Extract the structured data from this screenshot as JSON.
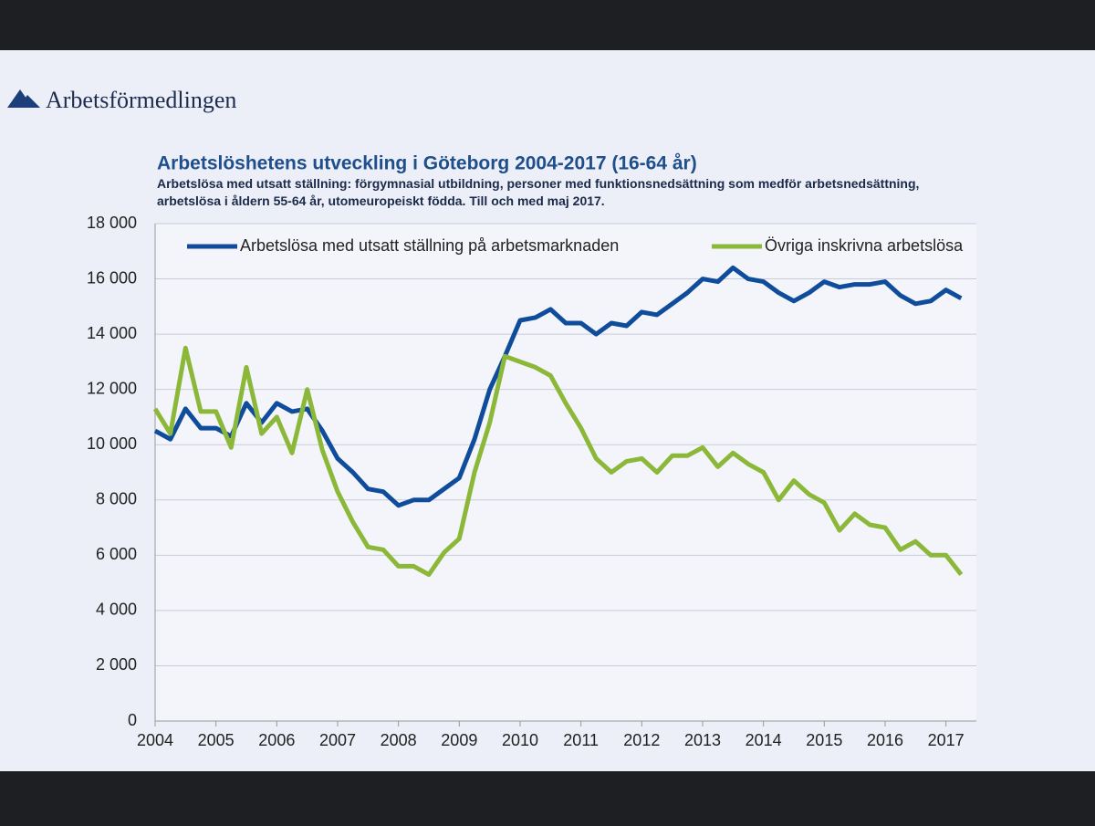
{
  "header": {
    "logo": "Arbetsförmedlingen"
  },
  "chart_data": {
    "type": "line",
    "title": "Arbetslöshetens utveckling i Göteborg 2004-2017 (16-64 år)",
    "subtitle": "Arbetslösa med utsatt ställning: förgymnasial utbildning, personer med funktionsnedsättning som medför arbetsnedsättning, arbetslösa i åldern 55-64 år, utomeuropeiskt födda. Till och med maj 2017.",
    "x": [
      2004,
      2004.25,
      2004.5,
      2004.75,
      2005,
      2005.25,
      2005.5,
      2005.75,
      2006,
      2006.25,
      2006.5,
      2006.75,
      2007,
      2007.25,
      2007.5,
      2007.75,
      2008,
      2008.25,
      2008.5,
      2008.75,
      2009,
      2009.25,
      2009.5,
      2009.75,
      2010,
      2010.25,
      2010.5,
      2010.75,
      2011,
      2011.25,
      2011.5,
      2011.75,
      2012,
      2012.25,
      2012.5,
      2012.75,
      2013,
      2013.25,
      2013.5,
      2013.75,
      2014,
      2014.25,
      2014.5,
      2014.75,
      2015,
      2015.25,
      2015.5,
      2015.75,
      2016,
      2016.25,
      2016.5,
      2016.75,
      2017,
      2017.25
    ],
    "series": [
      {
        "name": "Arbetslösa med utsatt ställning på arbetsmarknaden",
        "color": "#0f4c9c",
        "values": [
          10500,
          10200,
          11300,
          10600,
          10600,
          10300,
          11500,
          10800,
          11500,
          11200,
          11300,
          10500,
          9500,
          9000,
          8400,
          8300,
          7800,
          8000,
          8000,
          8400,
          8800,
          10200,
          12000,
          13200,
          14500,
          14600,
          14900,
          14400,
          14400,
          14000,
          14400,
          14300,
          14800,
          14700,
          15100,
          15500,
          16000,
          15900,
          16400,
          16000,
          15900,
          15500,
          15200,
          15500,
          15900,
          15700,
          15800,
          15800,
          15900,
          15400,
          15100,
          15200,
          15600,
          15300
        ]
      },
      {
        "name": "Övriga inskrivna arbetslösa",
        "color": "#8cb83a",
        "values": [
          11300,
          10400,
          13500,
          11200,
          11200,
          9900,
          12800,
          10400,
          11000,
          9700,
          12000,
          9800,
          8300,
          7200,
          6300,
          6200,
          5600,
          5600,
          5300,
          6100,
          6600,
          9000,
          10800,
          13200,
          13000,
          12800,
          12500,
          11500,
          10600,
          9500,
          9000,
          9400,
          9500,
          9000,
          9600,
          9600,
          9900,
          9200,
          9700,
          9300,
          9000,
          8000,
          8700,
          8200,
          7900,
          6900,
          7500,
          7100,
          7000,
          6200,
          6500,
          6000,
          6000,
          5300
        ]
      }
    ],
    "xlim": [
      2004,
      2017.5
    ],
    "xticks": [
      2004,
      2005,
      2006,
      2007,
      2008,
      2009,
      2010,
      2011,
      2012,
      2013,
      2014,
      2015,
      2016,
      2017
    ],
    "ylim": [
      0,
      18000
    ],
    "yticks": [
      0,
      {
        "value": 2000,
        "label": "2 000"
      },
      {
        "value": 4000,
        "label": "4 000"
      },
      {
        "value": 6000,
        "label": "6 000"
      },
      {
        "value": 8000,
        "label": "8 000"
      },
      {
        "value": 10000,
        "label": "10 000"
      },
      {
        "value": 12000,
        "label": "12 000"
      },
      {
        "value": 14000,
        "label": "14 000"
      },
      {
        "value": 16000,
        "label": "16 000"
      },
      {
        "value": 18000,
        "label": "18 000"
      }
    ],
    "grid": true,
    "legend": "top"
  }
}
